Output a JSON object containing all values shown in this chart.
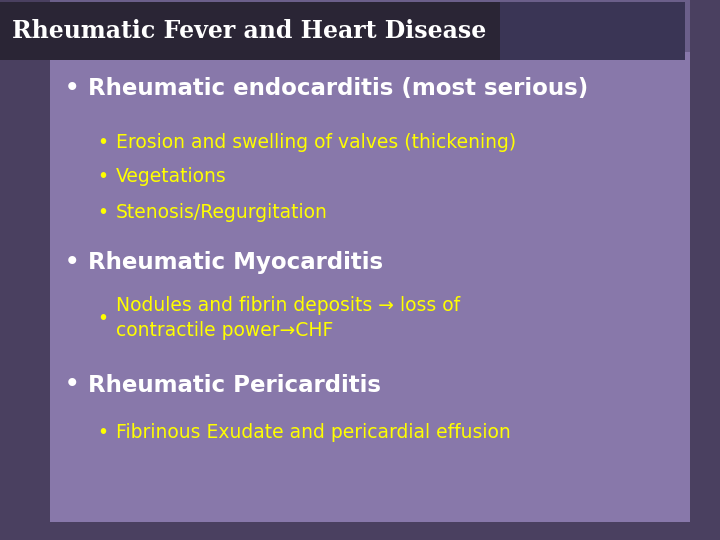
{
  "title": "Rheumatic Fever and Heart Disease",
  "title_bg": "#2a2535",
  "title_color": "#ffffff",
  "outer_bg": "#6b5f8a",
  "side_bar_bg": "#4a4060",
  "inner_bg": "#8878aa",
  "items": [
    {
      "text": "Rheumatic endocarditis (most serious)",
      "color": "#ffffff",
      "level": 1,
      "bold": true
    },
    {
      "text": "Erosion and swelling of valves (thickening)",
      "color": "#ffff00",
      "level": 2,
      "bold": false
    },
    {
      "text": "Vegetations",
      "color": "#ffff00",
      "level": 2,
      "bold": false
    },
    {
      "text": "Stenosis/Regurgitation",
      "color": "#ffff00",
      "level": 2,
      "bold": false
    },
    {
      "text": "Rheumatic Myocarditis",
      "color": "#ffffff",
      "level": 1,
      "bold": true
    },
    {
      "text": "Nodules and fibrin deposits → loss of\ncontractile power→CHF",
      "color": "#ffff00",
      "level": 2,
      "bold": false
    },
    {
      "text": "Rheumatic Pericarditis",
      "color": "#ffffff",
      "level": 1,
      "bold": true
    },
    {
      "text": "Fibrinous Exudate and pericardial effusion",
      "color": "#ffff00",
      "level": 2,
      "bold": false
    }
  ],
  "figsize": [
    7.2,
    5.4
  ],
  "dpi": 100
}
